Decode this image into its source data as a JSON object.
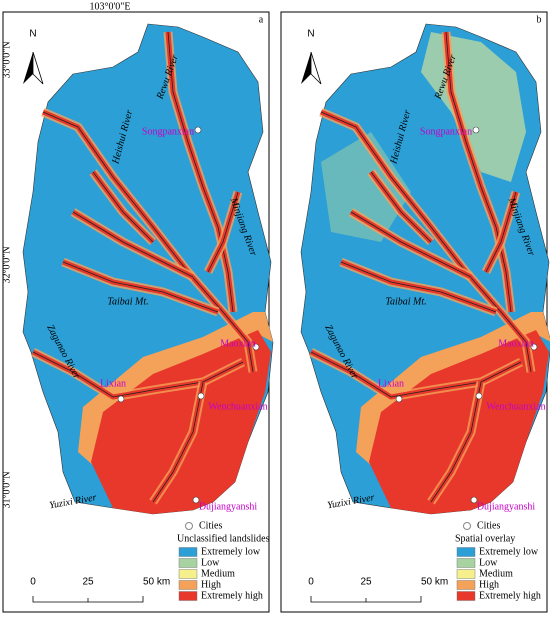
{
  "coordinates": {
    "longitude": "103°0'0\"E",
    "latitudes": [
      "33°0'0\"N",
      "32°0'0\"N",
      "31°0'0\"N"
    ]
  },
  "panels": [
    {
      "label": "a",
      "north": "N",
      "rivers": [
        "Heishui River",
        "Rewu River",
        "Minjiang River",
        "Zagunao River",
        "Yuzixi River"
      ],
      "mountain": "Taibai Mt.",
      "places": [
        "Songpanxian",
        "Maoxian",
        "Lixian",
        "Wenchuanxian",
        "Dujiangyanshi"
      ],
      "legend": {
        "cities": "Cities",
        "title": "Unclassified landslides",
        "classes": [
          {
            "name": "Extremely low",
            "color": "#2b9fd6"
          },
          {
            "name": "Low",
            "color": "#a6d3a0"
          },
          {
            "name": "Medium",
            "color": "#f6f08c"
          },
          {
            "name": "High",
            "color": "#f4a25a"
          },
          {
            "name": "Extremely high",
            "color": "#e8382b"
          }
        ]
      },
      "scale": [
        "0",
        "25",
        "50 km"
      ]
    },
    {
      "label": "b",
      "north": "N",
      "rivers": [
        "Heishui River",
        "Rewu River",
        "Minjiang River",
        "Zagunao River",
        "Yuzixi River"
      ],
      "mountain": "Taibai Mt.",
      "places": [
        "Songpanxian",
        "Maoxian",
        "Lixian",
        "Wenchuanxian",
        "Dujiangyanshi"
      ],
      "legend": {
        "cities": "Cities",
        "title": "Spatial overlay",
        "classes": [
          {
            "name": "Extremely low",
            "color": "#2b9fd6"
          },
          {
            "name": "Low",
            "color": "#a6d3a0"
          },
          {
            "name": "Medium",
            "color": "#f6f08c"
          },
          {
            "name": "High",
            "color": "#f4a25a"
          },
          {
            "name": "Extremely high",
            "color": "#e8382b"
          }
        ]
      },
      "scale": [
        "0",
        "25",
        "50 km"
      ]
    }
  ]
}
